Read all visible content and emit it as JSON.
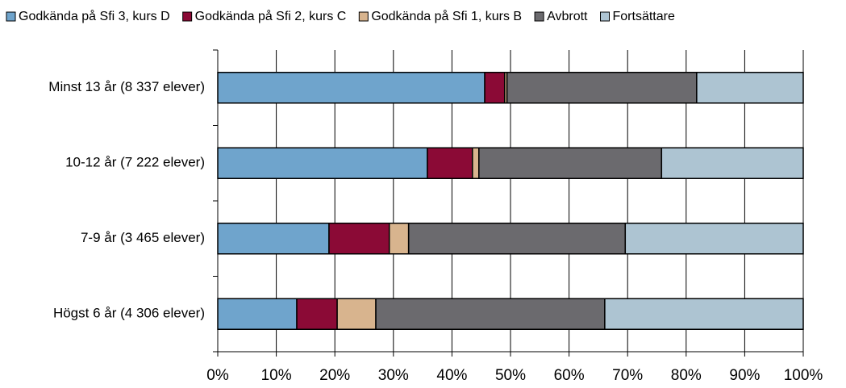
{
  "chart_data": {
    "type": "stacked-barh",
    "categories": [
      "Minst 13 år (8 337 elever)",
      "10-12 år (7 222 elever)",
      "7-9 år (3 465 elever)",
      "Högst 6 år (4 306 elever)"
    ],
    "series": [
      {
        "name": "Godkända på Sfi 3, kurs D",
        "color": "#6fa4cc",
        "values": [
          45.6,
          35.8,
          19.0,
          13.5
        ]
      },
      {
        "name": "Godkända på Sfi 2, kurs C",
        "color": "#8b0a36",
        "values": [
          3.4,
          7.7,
          10.3,
          6.9
        ]
      },
      {
        "name": "Godkända på Sfi 1, kurs B",
        "color": "#d8b48e",
        "values": [
          0.4,
          1.1,
          3.3,
          6.6
        ]
      },
      {
        "name": "Avbrott",
        "color": "#6b6a6e",
        "values": [
          32.4,
          31.2,
          37.0,
          39.1
        ]
      },
      {
        "name": "Fortsättare",
        "color": "#adc4d2",
        "values": [
          18.2,
          24.2,
          30.4,
          33.9
        ]
      }
    ],
    "xlim": [
      0,
      100
    ],
    "xticks": [
      {
        "value": 0,
        "label": "0%"
      },
      {
        "value": 10,
        "label": "10%"
      },
      {
        "value": 20,
        "label": "20%"
      },
      {
        "value": 30,
        "label": "30%"
      },
      {
        "value": 40,
        "label": "40%"
      },
      {
        "value": 50,
        "label": "50%"
      },
      {
        "value": 60,
        "label": "60%"
      },
      {
        "value": 70,
        "label": "70%"
      },
      {
        "value": 80,
        "label": "80%"
      },
      {
        "value": 90,
        "label": "90%"
      },
      {
        "value": 100,
        "label": "100%"
      }
    ],
    "grid": true,
    "legend": "top"
  }
}
